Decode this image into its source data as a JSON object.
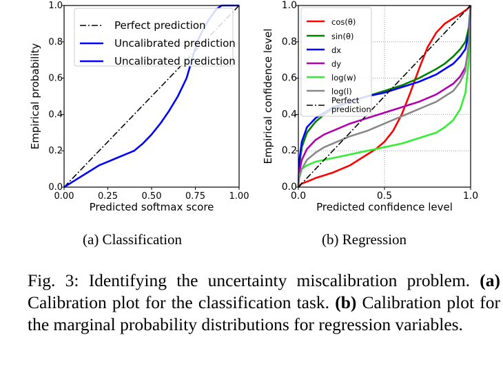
{
  "chart_data": [
    {
      "type": "line",
      "id": "classification",
      "xlabel": "Predicted softmax score",
      "ylabel": "Empirical probability",
      "xlim": [
        0,
        1
      ],
      "ylim": [
        0,
        1
      ],
      "xticks": [
        "0.00",
        "0.25",
        "0.50",
        "0.75",
        "1.00"
      ],
      "yticks": [
        "0.0",
        "0.2",
        "0.4",
        "0.6",
        "0.8",
        "1.0"
      ],
      "legend_position": "top-left",
      "series": [
        {
          "name": "Perfect prediction",
          "color": "#000000",
          "style": "dashdot",
          "x": [
            0,
            1
          ],
          "y": [
            0,
            1
          ]
        },
        {
          "name": "Uncalibrated prediction",
          "color": "#0000ff",
          "style": "solid",
          "x": [
            0,
            0.05,
            0.1,
            0.15,
            0.2,
            0.25,
            0.3,
            0.35,
            0.4,
            0.45,
            0.5,
            0.55,
            0.6,
            0.65,
            0.7,
            0.73,
            0.76,
            0.8,
            0.84,
            0.87,
            0.9,
            0.95,
            1.0
          ],
          "y": [
            0,
            0.03,
            0.06,
            0.09,
            0.12,
            0.14,
            0.16,
            0.18,
            0.2,
            0.24,
            0.29,
            0.35,
            0.42,
            0.5,
            0.6,
            0.7,
            0.8,
            0.88,
            0.94,
            0.98,
            1.0,
            1.0,
            1.0
          ]
        },
        {
          "name": "Uncalibrated prediction",
          "color": "#0000ff",
          "style": "solid",
          "x": [],
          "y": []
        }
      ]
    },
    {
      "type": "line",
      "id": "regression",
      "xlabel": "Predicted confidence level",
      "ylabel": "Empirical confidence level",
      "xlim": [
        0,
        1
      ],
      "ylim": [
        0,
        1
      ],
      "xticks": [
        "0.0",
        "0.5",
        "1.0"
      ],
      "yticks": [
        "0.0",
        "0.2",
        "0.4",
        "0.6",
        "0.8",
        "1.0"
      ],
      "grid": true,
      "legend_position": "top-left",
      "series": [
        {
          "name": "cos(θ)",
          "color": "#ff0000",
          "style": "solid",
          "x": [
            0,
            0.02,
            0.05,
            0.1,
            0.15,
            0.2,
            0.25,
            0.3,
            0.35,
            0.4,
            0.45,
            0.5,
            0.55,
            0.6,
            0.65,
            0.7,
            0.75,
            0.8,
            0.85,
            0.9,
            0.95,
            0.98,
            1.0
          ],
          "y": [
            0,
            0.02,
            0.03,
            0.05,
            0.065,
            0.08,
            0.1,
            0.12,
            0.15,
            0.18,
            0.21,
            0.25,
            0.31,
            0.4,
            0.52,
            0.65,
            0.77,
            0.85,
            0.9,
            0.93,
            0.96,
            0.98,
            1.0
          ]
        },
        {
          "name": "sin(θ)",
          "color": "#008000",
          "style": "solid",
          "x": [
            0,
            0.005,
            0.02,
            0.05,
            0.1,
            0.15,
            0.2,
            0.3,
            0.4,
            0.5,
            0.6,
            0.7,
            0.8,
            0.85,
            0.9,
            0.94,
            0.97,
            0.99,
            1.0
          ],
          "y": [
            0,
            0.12,
            0.22,
            0.3,
            0.36,
            0.4,
            0.43,
            0.47,
            0.5,
            0.53,
            0.56,
            0.6,
            0.65,
            0.68,
            0.72,
            0.76,
            0.8,
            0.88,
            1.0
          ]
        },
        {
          "name": "dx",
          "color": "#0000ff",
          "style": "solid",
          "x": [
            0,
            0.005,
            0.02,
            0.05,
            0.1,
            0.15,
            0.2,
            0.3,
            0.4,
            0.5,
            0.6,
            0.7,
            0.8,
            0.85,
            0.9,
            0.94,
            0.97,
            0.99,
            1.0
          ],
          "y": [
            0,
            0.14,
            0.25,
            0.33,
            0.38,
            0.41,
            0.44,
            0.47,
            0.5,
            0.52,
            0.55,
            0.58,
            0.62,
            0.65,
            0.68,
            0.72,
            0.76,
            0.85,
            1.0
          ]
        },
        {
          "name": "dy",
          "color": "#b000b0",
          "style": "solid",
          "x": [
            0,
            0.005,
            0.02,
            0.05,
            0.1,
            0.15,
            0.2,
            0.3,
            0.4,
            0.5,
            0.6,
            0.7,
            0.8,
            0.85,
            0.9,
            0.94,
            0.97,
            0.99,
            1.0
          ],
          "y": [
            0,
            0.08,
            0.15,
            0.21,
            0.26,
            0.29,
            0.31,
            0.35,
            0.38,
            0.41,
            0.44,
            0.47,
            0.51,
            0.54,
            0.57,
            0.61,
            0.66,
            0.78,
            1.0
          ]
        },
        {
          "name": "log(w)",
          "color": "#33ee33",
          "style": "solid",
          "x": [
            0,
            0.005,
            0.02,
            0.05,
            0.1,
            0.2,
            0.3,
            0.4,
            0.5,
            0.6,
            0.7,
            0.8,
            0.85,
            0.9,
            0.94,
            0.97,
            0.99,
            1.0
          ],
          "y": [
            0,
            0.06,
            0.1,
            0.12,
            0.14,
            0.16,
            0.18,
            0.2,
            0.22,
            0.24,
            0.27,
            0.3,
            0.33,
            0.37,
            0.43,
            0.52,
            0.7,
            1.0
          ]
        },
        {
          "name": "log(l)",
          "color": "#888888",
          "style": "solid",
          "x": [
            0,
            0.005,
            0.02,
            0.05,
            0.1,
            0.15,
            0.2,
            0.3,
            0.4,
            0.5,
            0.6,
            0.7,
            0.8,
            0.85,
            0.9,
            0.94,
            0.97,
            0.99,
            1.0
          ],
          "y": [
            0,
            0.05,
            0.1,
            0.15,
            0.19,
            0.22,
            0.24,
            0.28,
            0.31,
            0.35,
            0.39,
            0.43,
            0.47,
            0.5,
            0.53,
            0.58,
            0.64,
            0.8,
            1.0
          ]
        },
        {
          "name": "Perfect prediction",
          "color": "#000000",
          "style": "dashdot",
          "x": [
            0,
            1
          ],
          "y": [
            0,
            1
          ]
        }
      ]
    }
  ],
  "subfigures": {
    "a_label": "(a) Classification",
    "b_label": "(b) Regression"
  },
  "caption": {
    "prefix": "Fig. 3: Identifying the uncertainty miscalibration problem.",
    "a_tag": "(a)",
    "a_text": "Calibration plot for the classification task.",
    "b_tag": "(b)",
    "b_text": "Calibration plot for the marginal probability distributions for regression variables."
  }
}
